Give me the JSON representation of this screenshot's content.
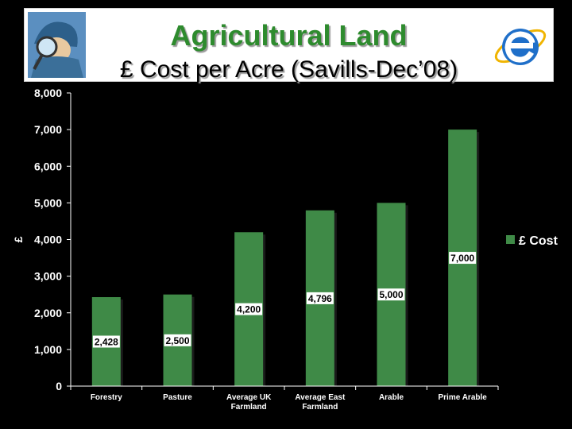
{
  "header": {
    "title": "Agricultural Land",
    "subtitle": "£ Cost per Acre (Savills-Dec’08)",
    "left_image": "detective-magnifier-illustration",
    "right_image": "internet-explorer-logo",
    "title_color": "#2e8b2e"
  },
  "chart_data": {
    "type": "bar",
    "categories": [
      "Forestry",
      "Pasture",
      "Average UK Farmland",
      "Average East Farmland",
      "Arable",
      "Prime Arable"
    ],
    "category_lines": [
      [
        "Forestry"
      ],
      [
        "Pasture"
      ],
      [
        "Average UK",
        "Farmland"
      ],
      [
        "Average East",
        "Farmland"
      ],
      [
        "Arable"
      ],
      [
        "Prime Arable"
      ]
    ],
    "series": [
      {
        "name": "£ Cost",
        "values": [
          2428,
          2500,
          4200,
          4796,
          5000,
          7000
        ],
        "labels": [
          "2,428",
          "2,500",
          "4,200",
          "4,796",
          "5,000",
          "7,000"
        ],
        "color": "#3f8a47"
      }
    ],
    "ylabel": "£",
    "ylim": [
      0,
      8000
    ],
    "yticks": [
      0,
      1000,
      2000,
      3000,
      4000,
      5000,
      6000,
      7000,
      8000
    ],
    "ytick_labels": [
      "0",
      "1,000",
      "2,000",
      "3,000",
      "4,000",
      "5,000",
      "6,000",
      "7,000",
      "8,000"
    ],
    "grid": false,
    "legend_position": "right"
  }
}
